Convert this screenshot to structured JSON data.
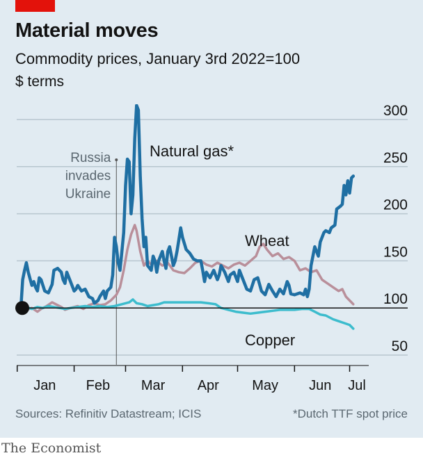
{
  "header": {
    "title": "Material moves",
    "subtitle": "Commodity prices, January 3rd 2022=100",
    "unit": "$ terms"
  },
  "footer": {
    "sources": "Sources: Refinitiv Datastream; ICIS",
    "note": "*Dutch TTF spot price",
    "brand": "The Economist"
  },
  "colors": {
    "accent": "#e3120b",
    "background": "#e1ebf2",
    "natural_gas": "#1f6fa3",
    "wheat": "#b98f9a",
    "copper": "#3cbccd",
    "baseline": "#121212",
    "gridline": "#b7c6cf"
  },
  "chart_data": {
    "type": "line",
    "title": "Material moves",
    "subtitle": "Commodity prices, January 3rd 2022=100",
    "ylabel": "$ terms",
    "ylim": [
      50,
      300
    ],
    "xlim": [
      "2022-01-03",
      "2022-07-08"
    ],
    "y_ticks": [
      50,
      100,
      150,
      200,
      250,
      300
    ],
    "y_tick_labels": [
      "50",
      "100",
      "150",
      "200",
      "250",
      "300"
    ],
    "x_tick_labels": [
      "Jan",
      "Feb",
      "Mar",
      "Apr",
      "May",
      "Jun",
      "Jul"
    ],
    "x_tick_label_dates": [
      "2022-01-16",
      "2022-02-14",
      "2022-03-16",
      "2022-04-15",
      "2022-05-16",
      "2022-06-15",
      "2022-07-05"
    ],
    "x_tick_marks": [
      "2022-01-01",
      "2022-02-01",
      "2022-03-01",
      "2022-04-01",
      "2022-05-01",
      "2022-06-01",
      "2022-07-01"
    ],
    "grid": true,
    "annotations": [
      {
        "date": "2022-02-24",
        "text": [
          "Russia",
          "invades",
          "Ukraine"
        ]
      }
    ],
    "series": [
      {
        "name": "Natural gas*",
        "points": [
          [
            "2022-01-03",
            100
          ],
          [
            "2022-01-04",
            130
          ],
          [
            "2022-01-05",
            140
          ],
          [
            "2022-01-06",
            148
          ],
          [
            "2022-01-07",
            138
          ],
          [
            "2022-01-09",
            124
          ],
          [
            "2022-01-10",
            128
          ],
          [
            "2022-01-11",
            122
          ],
          [
            "2022-01-12",
            118
          ],
          [
            "2022-01-13",
            132
          ],
          [
            "2022-01-14",
            130
          ],
          [
            "2022-01-16",
            118
          ],
          [
            "2022-01-18",
            116
          ],
          [
            "2022-01-20",
            125
          ],
          [
            "2022-01-21",
            140
          ],
          [
            "2022-01-23",
            142
          ],
          [
            "2022-01-25",
            138
          ],
          [
            "2022-01-26",
            130
          ],
          [
            "2022-01-27",
            126
          ],
          [
            "2022-01-28",
            138
          ],
          [
            "2022-01-30",
            128
          ],
          [
            "2022-02-01",
            118
          ],
          [
            "2022-02-02",
            120
          ],
          [
            "2022-02-03",
            124
          ],
          [
            "2022-02-05",
            118
          ],
          [
            "2022-02-07",
            120
          ],
          [
            "2022-02-09",
            112
          ],
          [
            "2022-02-11",
            110
          ],
          [
            "2022-02-12",
            105
          ],
          [
            "2022-02-14",
            108
          ],
          [
            "2022-02-15",
            112
          ],
          [
            "2022-02-17",
            118
          ],
          [
            "2022-02-18",
            110
          ],
          [
            "2022-02-19",
            118
          ],
          [
            "2022-02-21",
            122
          ],
          [
            "2022-02-22",
            135
          ],
          [
            "2022-02-23",
            175
          ],
          [
            "2022-02-24",
            165
          ],
          [
            "2022-02-25",
            148
          ],
          [
            "2022-02-26",
            140
          ],
          [
            "2022-02-27",
            160
          ],
          [
            "2022-02-28",
            180
          ],
          [
            "2022-03-01",
            230
          ],
          [
            "2022-03-02",
            258
          ],
          [
            "2022-03-03",
            255
          ],
          [
            "2022-03-04",
            200
          ],
          [
            "2022-03-05",
            220
          ],
          [
            "2022-03-06",
            280
          ],
          [
            "2022-03-07",
            315
          ],
          [
            "2022-03-08",
            310
          ],
          [
            "2022-03-09",
            240
          ],
          [
            "2022-03-10",
            195
          ],
          [
            "2022-03-11",
            165
          ],
          [
            "2022-03-12",
            175
          ],
          [
            "2022-03-13",
            145
          ],
          [
            "2022-03-15",
            140
          ],
          [
            "2022-03-16",
            155
          ],
          [
            "2022-03-17",
            150
          ],
          [
            "2022-03-18",
            138
          ],
          [
            "2022-03-19",
            150
          ],
          [
            "2022-03-21",
            160
          ],
          [
            "2022-03-22",
            150
          ],
          [
            "2022-03-23",
            142
          ],
          [
            "2022-03-24",
            160
          ],
          [
            "2022-03-25",
            165
          ],
          [
            "2022-03-26",
            155
          ],
          [
            "2022-03-27",
            145
          ],
          [
            "2022-03-28",
            150
          ],
          [
            "2022-03-29",
            160
          ],
          [
            "2022-03-30",
            172
          ],
          [
            "2022-03-31",
            185
          ],
          [
            "2022-04-01",
            175
          ],
          [
            "2022-04-03",
            162
          ],
          [
            "2022-04-05",
            158
          ],
          [
            "2022-04-07",
            152
          ],
          [
            "2022-04-09",
            150
          ],
          [
            "2022-04-11",
            150
          ],
          [
            "2022-04-12",
            140
          ],
          [
            "2022-04-13",
            128
          ],
          [
            "2022-04-14",
            138
          ],
          [
            "2022-04-16",
            132
          ],
          [
            "2022-04-18",
            140
          ],
          [
            "2022-04-20",
            130
          ],
          [
            "2022-04-21",
            135
          ],
          [
            "2022-04-22",
            145
          ],
          [
            "2022-04-24",
            138
          ],
          [
            "2022-04-26",
            128
          ],
          [
            "2022-04-27",
            135
          ],
          [
            "2022-04-29",
            138
          ],
          [
            "2022-05-01",
            128
          ],
          [
            "2022-05-02",
            140
          ],
          [
            "2022-05-04",
            130
          ],
          [
            "2022-05-06",
            120
          ],
          [
            "2022-05-08",
            118
          ],
          [
            "2022-05-10",
            130
          ],
          [
            "2022-05-12",
            132
          ],
          [
            "2022-05-14",
            118
          ],
          [
            "2022-05-16",
            114
          ],
          [
            "2022-05-18",
            125
          ],
          [
            "2022-05-20",
            118
          ],
          [
            "2022-05-22",
            112
          ],
          [
            "2022-05-24",
            120
          ],
          [
            "2022-05-26",
            115
          ],
          [
            "2022-05-28",
            128
          ],
          [
            "2022-05-29",
            124
          ],
          [
            "2022-05-30",
            115
          ],
          [
            "2022-06-01",
            114
          ],
          [
            "2022-06-04",
            116
          ],
          [
            "2022-06-06",
            114
          ],
          [
            "2022-06-07",
            120
          ],
          [
            "2022-06-08",
            112
          ],
          [
            "2022-06-09",
            120
          ],
          [
            "2022-06-10",
            145
          ],
          [
            "2022-06-12",
            165
          ],
          [
            "2022-06-13",
            160
          ],
          [
            "2022-06-14",
            155
          ],
          [
            "2022-06-15",
            170
          ],
          [
            "2022-06-17",
            180
          ],
          [
            "2022-06-18",
            182
          ],
          [
            "2022-06-20",
            180
          ],
          [
            "2022-06-21",
            185
          ],
          [
            "2022-06-23",
            188
          ],
          [
            "2022-06-24",
            205
          ],
          [
            "2022-06-26",
            208
          ],
          [
            "2022-06-27",
            210
          ],
          [
            "2022-06-28",
            230
          ],
          [
            "2022-06-29",
            220
          ],
          [
            "2022-06-30",
            235
          ],
          [
            "2022-07-01",
            222
          ],
          [
            "2022-07-02",
            238
          ],
          [
            "2022-07-03",
            240
          ]
        ]
      },
      {
        "name": "Wheat",
        "points": [
          [
            "2022-01-03",
            100
          ],
          [
            "2022-01-06",
            98
          ],
          [
            "2022-01-09",
            100
          ],
          [
            "2022-01-12",
            96
          ],
          [
            "2022-01-14",
            99
          ],
          [
            "2022-01-17",
            102
          ],
          [
            "2022-01-20",
            106
          ],
          [
            "2022-01-22",
            104
          ],
          [
            "2022-01-25",
            101
          ],
          [
            "2022-01-27",
            98
          ],
          [
            "2022-01-30",
            100
          ],
          [
            "2022-02-03",
            102
          ],
          [
            "2022-02-06",
            99
          ],
          [
            "2022-02-09",
            103
          ],
          [
            "2022-02-12",
            105
          ],
          [
            "2022-02-15",
            103
          ],
          [
            "2022-02-18",
            104
          ],
          [
            "2022-02-21",
            108
          ],
          [
            "2022-02-24",
            114
          ],
          [
            "2022-02-26",
            122
          ],
          [
            "2022-02-28",
            140
          ],
          [
            "2022-03-02",
            162
          ],
          [
            "2022-03-04",
            178
          ],
          [
            "2022-03-06",
            188
          ],
          [
            "2022-03-07",
            182
          ],
          [
            "2022-03-09",
            160
          ],
          [
            "2022-03-11",
            145
          ],
          [
            "2022-03-13",
            150
          ],
          [
            "2022-03-15",
            146
          ],
          [
            "2022-03-18",
            150
          ],
          [
            "2022-03-21",
            145
          ],
          [
            "2022-03-24",
            148
          ],
          [
            "2022-03-27",
            140
          ],
          [
            "2022-03-30",
            138
          ],
          [
            "2022-04-02",
            137
          ],
          [
            "2022-04-05",
            142
          ],
          [
            "2022-04-08",
            148
          ],
          [
            "2022-04-11",
            150
          ],
          [
            "2022-04-14",
            146
          ],
          [
            "2022-04-17",
            144
          ],
          [
            "2022-04-20",
            148
          ],
          [
            "2022-04-23",
            145
          ],
          [
            "2022-04-26",
            142
          ],
          [
            "2022-04-29",
            146
          ],
          [
            "2022-05-02",
            148
          ],
          [
            "2022-05-05",
            145
          ],
          [
            "2022-05-08",
            150
          ],
          [
            "2022-05-11",
            155
          ],
          [
            "2022-05-13",
            165
          ],
          [
            "2022-05-15",
            168
          ],
          [
            "2022-05-17",
            162
          ],
          [
            "2022-05-20",
            155
          ],
          [
            "2022-05-23",
            158
          ],
          [
            "2022-05-26",
            152
          ],
          [
            "2022-05-29",
            154
          ],
          [
            "2022-06-01",
            150
          ],
          [
            "2022-06-04",
            140
          ],
          [
            "2022-06-07",
            142
          ],
          [
            "2022-06-10",
            138
          ],
          [
            "2022-06-13",
            140
          ],
          [
            "2022-06-16",
            130
          ],
          [
            "2022-06-19",
            126
          ],
          [
            "2022-06-22",
            122
          ],
          [
            "2022-06-25",
            118
          ],
          [
            "2022-06-27",
            120
          ],
          [
            "2022-06-29",
            112
          ],
          [
            "2022-07-01",
            108
          ],
          [
            "2022-07-03",
            104
          ]
        ]
      },
      {
        "name": "Copper",
        "points": [
          [
            "2022-01-03",
            100
          ],
          [
            "2022-01-06",
            101
          ],
          [
            "2022-01-09",
            99
          ],
          [
            "2022-01-12",
            101
          ],
          [
            "2022-01-15",
            100
          ],
          [
            "2022-01-18",
            102
          ],
          [
            "2022-01-21",
            101
          ],
          [
            "2022-01-24",
            100
          ],
          [
            "2022-01-27",
            99
          ],
          [
            "2022-01-30",
            100
          ],
          [
            "2022-02-03",
            101
          ],
          [
            "2022-02-07",
            102
          ],
          [
            "2022-02-11",
            101
          ],
          [
            "2022-02-15",
            102
          ],
          [
            "2022-02-19",
            101
          ],
          [
            "2022-02-23",
            102
          ],
          [
            "2022-02-27",
            104
          ],
          [
            "2022-03-03",
            106
          ],
          [
            "2022-03-05",
            109
          ],
          [
            "2022-03-07",
            105
          ],
          [
            "2022-03-10",
            104
          ],
          [
            "2022-03-13",
            102
          ],
          [
            "2022-03-16",
            103
          ],
          [
            "2022-03-19",
            104
          ],
          [
            "2022-03-22",
            106
          ],
          [
            "2022-03-26",
            106
          ],
          [
            "2022-03-30",
            106
          ],
          [
            "2022-04-03",
            106
          ],
          [
            "2022-04-07",
            106
          ],
          [
            "2022-04-11",
            106
          ],
          [
            "2022-04-15",
            105
          ],
          [
            "2022-04-19",
            104
          ],
          [
            "2022-04-22",
            100
          ],
          [
            "2022-04-26",
            98
          ],
          [
            "2022-04-30",
            96
          ],
          [
            "2022-05-04",
            95
          ],
          [
            "2022-05-08",
            94
          ],
          [
            "2022-05-12",
            95
          ],
          [
            "2022-05-16",
            96
          ],
          [
            "2022-05-20",
            97
          ],
          [
            "2022-05-24",
            98
          ],
          [
            "2022-05-28",
            98
          ],
          [
            "2022-06-01",
            98
          ],
          [
            "2022-06-05",
            99
          ],
          [
            "2022-06-09",
            99
          ],
          [
            "2022-06-12",
            96
          ],
          [
            "2022-06-15",
            93
          ],
          [
            "2022-06-18",
            92
          ],
          [
            "2022-06-22",
            88
          ],
          [
            "2022-06-25",
            86
          ],
          [
            "2022-06-28",
            84
          ],
          [
            "2022-07-01",
            82
          ],
          [
            "2022-07-03",
            78
          ]
        ]
      }
    ]
  }
}
